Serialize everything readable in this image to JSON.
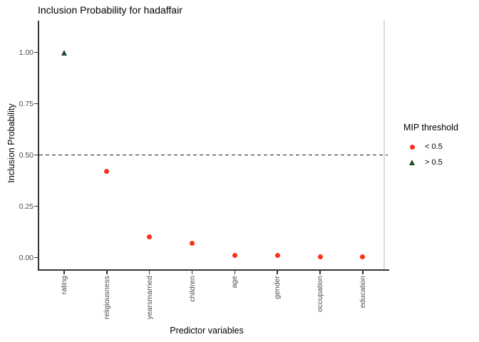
{
  "chart_data": {
    "type": "scatter",
    "title": "Inclusion Probability for hadaffair",
    "xlabel": "Predictor variables",
    "ylabel": "Inclusion Probability",
    "categories": [
      "rating",
      "religiousness",
      "yearsmarried",
      "children",
      "age",
      "gender",
      "occupation",
      "education"
    ],
    "values": [
      1.0,
      0.42,
      0.1,
      0.07,
      0.01,
      0.01,
      0.005,
      0.004
    ],
    "ylim": [
      0,
      1
    ],
    "ytick_values": [
      0,
      0.25,
      0.5,
      0.75,
      1.0
    ],
    "ytick_labels": [
      "0.00",
      "0.25",
      "0.50",
      "0.75",
      "1.00"
    ],
    "grid": false,
    "threshold": 0.5,
    "threshold_line_style": "dashed",
    "legend": {
      "title": "MIP threshold",
      "position": "right",
      "items": [
        {
          "label": "< 0.5",
          "marker": "circle",
          "color": "#F8331B"
        },
        {
          "label": "> 0.5",
          "marker": "triangle",
          "color": "#1E4C2A"
        }
      ]
    }
  },
  "colors": {
    "axis_line": "#333333",
    "tick_label": "#4D4D4D",
    "text": "#000000",
    "panel_right_border": "#D9D9D9",
    "threshold_line": "#1A1A1A",
    "background": "#FFFFFF",
    "point_below_threshold": "#F8331B",
    "point_above_threshold": "#1E4C2A"
  }
}
